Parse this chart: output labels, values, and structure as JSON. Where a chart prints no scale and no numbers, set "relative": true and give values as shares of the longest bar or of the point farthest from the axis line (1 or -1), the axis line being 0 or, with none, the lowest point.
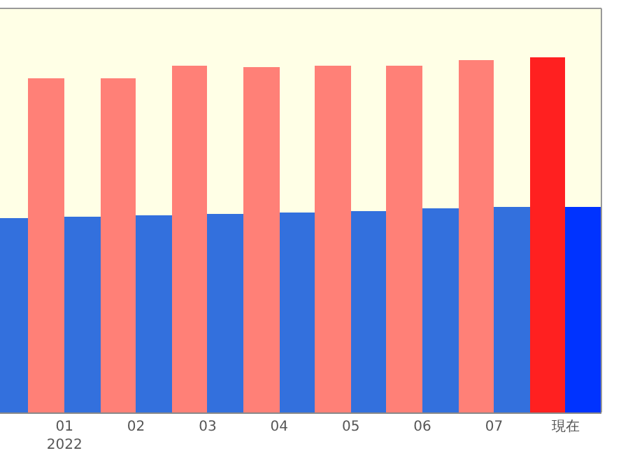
{
  "chart_data": {
    "type": "bar",
    "relative": true,
    "categories": [
      null,
      "01\n2022",
      "02",
      "03",
      "04",
      "05",
      "06",
      "07",
      "現在"
    ],
    "series": [
      {
        "colors": [
          "#ff8077",
          "#ff8077",
          "#ff8077",
          "#ff8077",
          "#ff8077",
          "#ff8077",
          "#ff8077",
          "#ff8077",
          "#ff2020"
        ],
        "values": [
          null,
          0.941,
          0.942,
          0.978,
          0.974,
          0.979,
          0.979,
          0.995,
          1
        ]
      },
      {
        "colors": [
          "#3370dd",
          "#3370dd",
          "#3370dd",
          "#3370dd",
          "#3370dd",
          "#3370dd",
          "#3370dd",
          "#3370dd",
          "#0033ff"
        ],
        "values": [
          0.548,
          0.552,
          0.556,
          0.561,
          0.565,
          0.569,
          0.574,
          0.578,
          0.578
        ]
      }
    ]
  }
}
